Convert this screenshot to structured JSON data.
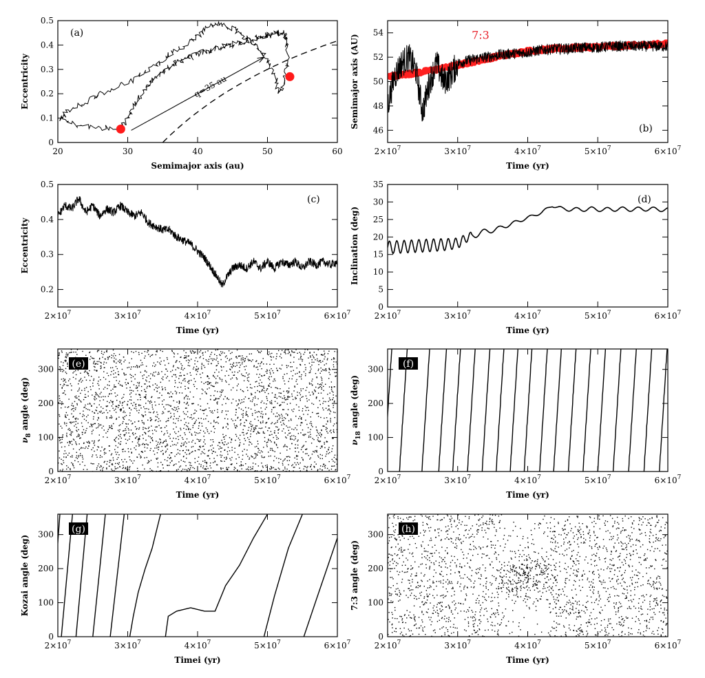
{
  "figure": {
    "panels": [
      "a",
      "b",
      "c",
      "d",
      "e",
      "f",
      "g",
      "h"
    ]
  },
  "chart_data": [
    {
      "id": "a",
      "type": "line",
      "panel_label": "(a)",
      "xlabel": "Semimajor axis (au)",
      "ylabel": "Eccentricity",
      "xlim": [
        20,
        60
      ],
      "ylim": [
        0,
        0.5
      ],
      "xticks": [
        20,
        30,
        40,
        50,
        60
      ],
      "yticks": [
        0,
        0.1,
        0.2,
        0.3,
        0.4,
        0.5
      ],
      "xtick_labels": [
        "20",
        "30",
        "40",
        "50",
        "60"
      ],
      "ytick_labels": [
        "0",
        "0.1",
        "0.2",
        "0.3",
        "0.4",
        "0.5"
      ],
      "annotations": [
        {
          "text": "q=35 au"
        }
      ],
      "series": [
        {
          "style": "jagged-line",
          "x": [
            29.0,
            29.6,
            30.2,
            30.6,
            31.2,
            31.8,
            32.3,
            32.9,
            33.4,
            34.0,
            34.6,
            35.1,
            35.5,
            36.0,
            36.6,
            37.2,
            37.8,
            38.4,
            39.1,
            39.8,
            40.5,
            41.3,
            42.1,
            42.9,
            43.7,
            44.3,
            45.0,
            45.7,
            46.4,
            47.1,
            47.8,
            48.4,
            49.1,
            49.6,
            50.1,
            50.6,
            51.1,
            51.5,
            51.9,
            52.2,
            52.5,
            52.7,
            52.8,
            52.9,
            52.8,
            52.6,
            52.3,
            52.0,
            51.6,
            51.3,
            50.8,
            50.2,
            49.6,
            48.9,
            48.1,
            47.3,
            46.5,
            45.6,
            44.8,
            43.9,
            43.0,
            42.0,
            41.1,
            40.1,
            39.1,
            38.1,
            37.0,
            35.9,
            34.8,
            33.6,
            32.3,
            30.9,
            29.4,
            27.9,
            26.3,
            24.8,
            23.4,
            22.1,
            21.1,
            20.5,
            21.6,
            23.2,
            25.1,
            27.0,
            28.5
          ],
          "y": [
            0.06,
            0.08,
            0.11,
            0.14,
            0.17,
            0.19,
            0.21,
            0.23,
            0.25,
            0.26,
            0.28,
            0.29,
            0.3,
            0.31,
            0.32,
            0.33,
            0.34,
            0.35,
            0.35,
            0.36,
            0.37,
            0.37,
            0.38,
            0.39,
            0.39,
            0.4,
            0.4,
            0.41,
            0.41,
            0.42,
            0.42,
            0.43,
            0.43,
            0.44,
            0.44,
            0.44,
            0.45,
            0.45,
            0.45,
            0.45,
            0.44,
            0.43,
            0.4,
            0.36,
            0.32,
            0.28,
            0.25,
            0.22,
            0.21,
            0.24,
            0.28,
            0.32,
            0.35,
            0.38,
            0.4,
            0.42,
            0.44,
            0.46,
            0.47,
            0.48,
            0.49,
            0.48,
            0.46,
            0.44,
            0.42,
            0.4,
            0.38,
            0.36,
            0.33,
            0.31,
            0.29,
            0.26,
            0.24,
            0.22,
            0.2,
            0.18,
            0.16,
            0.14,
            0.12,
            0.1,
            0.08,
            0.07,
            0.06,
            0.06,
            0.05
          ]
        },
        {
          "style": "dashed",
          "name": "q=35 au",
          "x": [
            35.0,
            36.0,
            37.0,
            38.0,
            39.0,
            40.0,
            41.0,
            42.0,
            43.0,
            44.0,
            45.0,
            46.0,
            47.0,
            48.0,
            49.0,
            50.0,
            51.0,
            52.0,
            53.0,
            54.0,
            55.0,
            56.0,
            57.0,
            58.0,
            59.0,
            60.0
          ],
          "y": [
            0.0,
            0.028,
            0.054,
            0.079,
            0.103,
            0.125,
            0.146,
            0.167,
            0.186,
            0.205,
            0.222,
            0.239,
            0.255,
            0.271,
            0.286,
            0.3,
            0.314,
            0.327,
            0.34,
            0.352,
            0.364,
            0.375,
            0.386,
            0.397,
            0.407,
            0.417
          ]
        },
        {
          "style": "arrow",
          "x": [
            30.5,
            49.5
          ],
          "y": [
            0.05,
            0.35
          ]
        },
        {
          "style": "red-dots",
          "x": [
            29.0,
            53.2
          ],
          "y": [
            0.055,
            0.27
          ]
        }
      ]
    },
    {
      "id": "b",
      "type": "line",
      "panel_label": "(b)",
      "xlabel": "Time (yr)",
      "ylabel": "Semimajor axis (AU)",
      "xlim": [
        20000000,
        60000000
      ],
      "ylim": [
        45,
        55
      ],
      "xticks": [
        20000000,
        30000000,
        40000000,
        50000000,
        60000000
      ],
      "yticks": [
        46,
        48,
        50,
        52,
        54
      ],
      "xtick_labels": [
        "2×10",
        "3×10",
        "4×10",
        "5×10",
        "6×10"
      ],
      "xtick_exponent": "7",
      "ytick_labels": [
        "46",
        "48",
        "50",
        "52",
        "54"
      ],
      "annotations": [
        {
          "text": "7:3",
          "color": "#e8202a"
        }
      ],
      "series": [
        {
          "name": "7:3",
          "style": "thick-band",
          "color": "#ff2020",
          "x": [
            20000000,
            24000000,
            28000000,
            32000000,
            36000000,
            40000000,
            44000000,
            48000000,
            52000000,
            56000000,
            60000000
          ],
          "y": [
            50.4,
            50.7,
            51.1,
            51.6,
            52.1,
            52.5,
            52.7,
            52.8,
            52.9,
            53.0,
            53.1
          ]
        },
        {
          "style": "noisy-line",
          "color": "#000000",
          "x": [
            20000000,
            21000000,
            22000000,
            23000000,
            24000000,
            25000000,
            26000000,
            27000000,
            28000000,
            29000000,
            30000000,
            32000000,
            34000000,
            36000000,
            38000000,
            40000000,
            42000000,
            44000000,
            46000000,
            48000000,
            50000000,
            52000000,
            54000000,
            56000000,
            58000000,
            60000000
          ],
          "y": [
            48.0,
            50.5,
            51.5,
            52.0,
            51.0,
            47.5,
            50.0,
            51.5,
            50.0,
            50.5,
            51.5,
            51.8,
            52.0,
            52.2,
            52.3,
            52.4,
            52.6,
            52.7,
            52.7,
            52.8,
            52.8,
            52.9,
            52.9,
            52.9,
            52.9,
            52.9
          ]
        }
      ]
    },
    {
      "id": "c",
      "type": "line",
      "panel_label": "(c)",
      "xlabel": "Time (yr)",
      "ylabel": "Eccentricity",
      "xlim": [
        20000000,
        60000000
      ],
      "ylim": [
        0.15,
        0.5
      ],
      "xticks": [
        20000000,
        30000000,
        40000000,
        50000000,
        60000000
      ],
      "yticks": [
        0.2,
        0.3,
        0.4,
        0.5
      ],
      "xtick_labels": [
        "2×10",
        "3×10",
        "4×10",
        "5×10",
        "6×10"
      ],
      "xtick_exponent": "7",
      "ytick_labels": [
        "0.2",
        "0.3",
        "0.4",
        "0.5"
      ],
      "series": [
        {
          "style": "noisy-line",
          "x": [
            20000000,
            21000000,
            22000000,
            23000000,
            24000000,
            25000000,
            26000000,
            27000000,
            28000000,
            29000000,
            30000000,
            31000000,
            32000000,
            33000000,
            34000000,
            35000000,
            36000000,
            37000000,
            38000000,
            39000000,
            40000000,
            41000000,
            42000000,
            43000000,
            43500000,
            44000000,
            45000000,
            46000000,
            47000000,
            48000000,
            49000000,
            50000000,
            51000000,
            52000000,
            53000000,
            54000000,
            55000000,
            56000000,
            57000000,
            58000000,
            59000000,
            60000000
          ],
          "y": [
            0.41,
            0.44,
            0.43,
            0.46,
            0.42,
            0.44,
            0.41,
            0.43,
            0.42,
            0.44,
            0.42,
            0.41,
            0.42,
            0.39,
            0.38,
            0.37,
            0.37,
            0.35,
            0.34,
            0.33,
            0.31,
            0.29,
            0.26,
            0.23,
            0.21,
            0.23,
            0.26,
            0.27,
            0.26,
            0.28,
            0.26,
            0.28,
            0.26,
            0.28,
            0.27,
            0.28,
            0.26,
            0.28,
            0.27,
            0.28,
            0.27,
            0.28
          ]
        }
      ]
    },
    {
      "id": "d",
      "type": "line",
      "panel_label": "(d)",
      "xlabel": "Time (yr)",
      "ylabel": "Inclination (deg)",
      "xlim": [
        20000000,
        60000000
      ],
      "ylim": [
        0,
        35
      ],
      "xticks": [
        20000000,
        30000000,
        40000000,
        50000000,
        60000000
      ],
      "yticks": [
        0,
        5,
        10,
        15,
        20,
        25,
        30,
        35
      ],
      "xtick_labels": [
        "2×10",
        "3×10",
        "4×10",
        "5×10",
        "6×10"
      ],
      "xtick_exponent": "7",
      "ytick_labels": [
        "0",
        "5",
        "10",
        "15",
        "20",
        "25",
        "30",
        "35"
      ],
      "series": [
        {
          "style": "oscillating-line",
          "x": [
            20000000,
            22000000,
            24000000,
            26000000,
            28000000,
            30000000,
            32000000,
            34000000,
            36000000,
            38000000,
            40000000,
            42000000,
            43500000,
            45000000,
            47000000,
            49000000,
            51000000,
            53000000,
            55000000,
            57000000,
            60000000
          ],
          "y": [
            17.0,
            17.2,
            17.4,
            17.6,
            17.8,
            18.2,
            20.5,
            21.5,
            22.5,
            24.0,
            25.5,
            27.0,
            29.0,
            28.0,
            27.8,
            28.0,
            27.8,
            28.0,
            27.9,
            28.0,
            27.8
          ],
          "oscillation_amplitude": [
            1.8,
            1.8,
            1.8,
            1.8,
            1.7,
            1.5,
            1.0,
            0.8,
            0.6,
            0.5,
            0.4,
            0.4,
            0.4,
            0.5,
            0.6,
            0.6,
            0.6,
            0.6,
            0.6,
            0.6,
            0.6
          ]
        }
      ]
    },
    {
      "id": "e",
      "type": "scatter",
      "panel_label": "(e)",
      "xlabel": "Time (yr)",
      "ylabel": "ν",
      "ylabel_sub": "8",
      "ylabel_rest": " angle (deg)",
      "xlim": [
        20000000,
        60000000
      ],
      "ylim": [
        0,
        360
      ],
      "xticks": [
        20000000,
        30000000,
        40000000,
        50000000,
        60000000
      ],
      "yticks": [
        0,
        100,
        200,
        300
      ],
      "xtick_labels": [
        "2×10",
        "3×10",
        "4×10",
        "5×10",
        "6×10"
      ],
      "xtick_exponent": "7",
      "ytick_labels": [
        "0",
        "100",
        "200",
        "300"
      ],
      "series": [
        {
          "style": "uniform-dots",
          "count": 3000
        }
      ]
    },
    {
      "id": "f",
      "type": "line",
      "panel_label": "(f)",
      "xlabel": "Time (yr)",
      "ylabel": "ν",
      "ylabel_sub": "18",
      "ylabel_rest": " angle (deg)",
      "xlim": [
        20000000,
        60000000
      ],
      "ylim": [
        0,
        360
      ],
      "xticks": [
        20000000,
        30000000,
        40000000,
        50000000,
        60000000
      ],
      "yticks": [
        0,
        100,
        200,
        300
      ],
      "xtick_labels": [
        "2×10",
        "3×10",
        "4×10",
        "5×10",
        "6×10"
      ],
      "xtick_exponent": "7",
      "ytick_labels": [
        "0",
        "100",
        "200",
        "300"
      ],
      "series": [
        {
          "style": "circulating",
          "wrap_start_times": [
            19500000,
            21700000,
            24900000,
            27300000,
            29300000,
            31400000,
            33500000,
            35500000,
            37500000,
            39500000,
            41700000,
            43700000,
            45800000,
            47900000,
            50000000,
            52200000,
            54400000,
            56600000,
            58800000
          ],
          "cycle_duration": 1100000
        }
      ]
    },
    {
      "id": "g",
      "type": "line",
      "panel_label": "(g)",
      "xlabel": "Timei (yr)",
      "ylabel": "Kozai angle (deg)",
      "xlim": [
        20000000,
        60000000
      ],
      "ylim": [
        0,
        360
      ],
      "xticks": [
        20000000,
        30000000,
        40000000,
        50000000,
        60000000
      ],
      "yticks": [
        0,
        100,
        200,
        300
      ],
      "xtick_labels": [
        "2×10",
        "3×10",
        "4×10",
        "5×10",
        "6×10"
      ],
      "xtick_exponent": "7",
      "ytick_labels": [
        "0",
        "100",
        "200",
        "300"
      ],
      "series": [
        {
          "style": "line",
          "x": [
            19000000,
            20300000
          ],
          "y": [
            0,
            360
          ]
        },
        {
          "style": "line",
          "x": [
            20500000,
            22100000
          ],
          "y": [
            0,
            360
          ]
        },
        {
          "style": "line",
          "x": [
            22600000,
            24200000
          ],
          "y": [
            0,
            360
          ]
        },
        {
          "style": "line",
          "x": [
            25000000,
            26800000
          ],
          "y": [
            0,
            360
          ]
        },
        {
          "style": "line",
          "x": [
            27500000,
            29500000
          ],
          "y": [
            0,
            360
          ]
        },
        {
          "style": "line",
          "x": [
            30300000,
            30800000,
            31500000,
            32500000,
            33500000,
            34700000
          ],
          "y": [
            0,
            60,
            130,
            200,
            260,
            360
          ]
        },
        {
          "style": "line",
          "x": [
            35400000,
            35800000,
            37000000,
            39000000,
            41000000,
            42500000,
            44000000,
            46000000,
            48000000,
            50000000
          ],
          "y": [
            0,
            60,
            75,
            85,
            75,
            75,
            150,
            210,
            290,
            360
          ]
        },
        {
          "style": "line",
          "x": [
            49500000,
            51000000,
            53000000,
            55000000
          ],
          "y": [
            0,
            120,
            260,
            360
          ]
        },
        {
          "style": "line",
          "x": [
            55200000,
            57000000,
            58500000,
            60000000
          ],
          "y": [
            0,
            110,
            200,
            290
          ]
        }
      ]
    },
    {
      "id": "h",
      "type": "scatter",
      "panel_label": "(h)",
      "xlabel": "Time (yr)",
      "ylabel": "7:3 angle (deg)",
      "xlim": [
        20000000,
        60000000
      ],
      "ylim": [
        0,
        360
      ],
      "xticks": [
        20000000,
        30000000,
        40000000,
        50000000,
        60000000
      ],
      "yticks": [
        0,
        100,
        200,
        300
      ],
      "xtick_labels": [
        "2×10",
        "3×10",
        "4×10",
        "5×10",
        "6×10"
      ],
      "xtick_exponent": "7",
      "ytick_labels": [
        "0",
        "100",
        "200",
        "300"
      ],
      "series": [
        {
          "style": "uniform-dots-with-libration",
          "count": 2300,
          "libration_center": 180,
          "libration_window": [
            36000000,
            43000000
          ]
        }
      ]
    }
  ]
}
